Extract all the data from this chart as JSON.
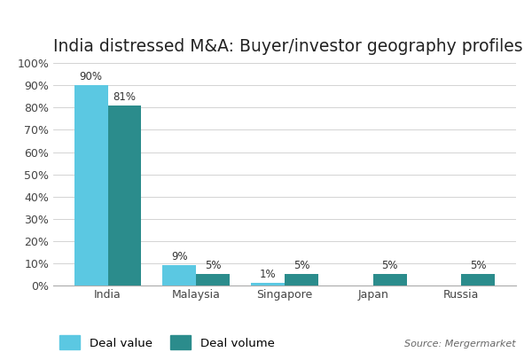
{
  "title": "India distressed M&A: Buyer/investor geography profiles",
  "categories": [
    "India",
    "Malaysia",
    "Singapore",
    "Japan",
    "Russia"
  ],
  "deal_value": [
    90,
    9,
    1,
    0,
    0
  ],
  "deal_volume": [
    81,
    5,
    5,
    5,
    5
  ],
  "deal_value_labels": [
    "90%",
    "9%",
    "1%",
    "",
    ""
  ],
  "deal_volume_labels": [
    "81%",
    "5%",
    "5%",
    "5%",
    "5%"
  ],
  "deal_value_color": "#5BC8E2",
  "deal_volume_color": "#2B8C8C",
  "ylim": [
    0,
    100
  ],
  "yticks": [
    0,
    10,
    20,
    30,
    40,
    50,
    60,
    70,
    80,
    90,
    100
  ],
  "ytick_labels": [
    "0%",
    "10%",
    "20%",
    "30%",
    "40%",
    "50%",
    "60%",
    "70%",
    "80%",
    "90%",
    "100%"
  ],
  "legend_deal_value": "Deal value",
  "legend_deal_volume": "Deal volume",
  "source_text": "Source: Mergermarket",
  "background_color": "#FFFFFF",
  "bar_width": 0.38,
  "title_fontsize": 13.5,
  "axis_fontsize": 9,
  "label_fontsize": 8.5,
  "legend_fontsize": 9.5
}
